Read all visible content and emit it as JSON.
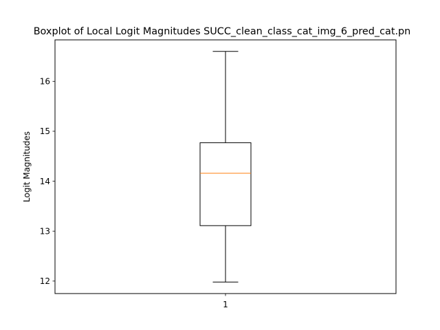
{
  "chart_data": {
    "type": "box",
    "title": "Boxplot of Local Logit Magnitudes SUCC_clean_class_cat_img_6_pred_cat.pn",
    "xlabel": "",
    "ylabel": "Logit Magnitudes",
    "categories": [
      "1"
    ],
    "boxes": [
      {
        "category": "1",
        "whisker_low": 11.98,
        "q1": 13.11,
        "median": 14.16,
        "q3": 14.77,
        "whisker_high": 16.6
      }
    ],
    "yticks": [
      12,
      13,
      14,
      15,
      16
    ],
    "ytick_labels": [
      "12",
      "13",
      "14",
      "15",
      "16"
    ],
    "ylim": [
      11.75,
      16.83
    ],
    "grid": false,
    "colors": {
      "box": "#000000",
      "median": "#ff7f0e",
      "axes": "#000000",
      "background": "#ffffff"
    }
  }
}
